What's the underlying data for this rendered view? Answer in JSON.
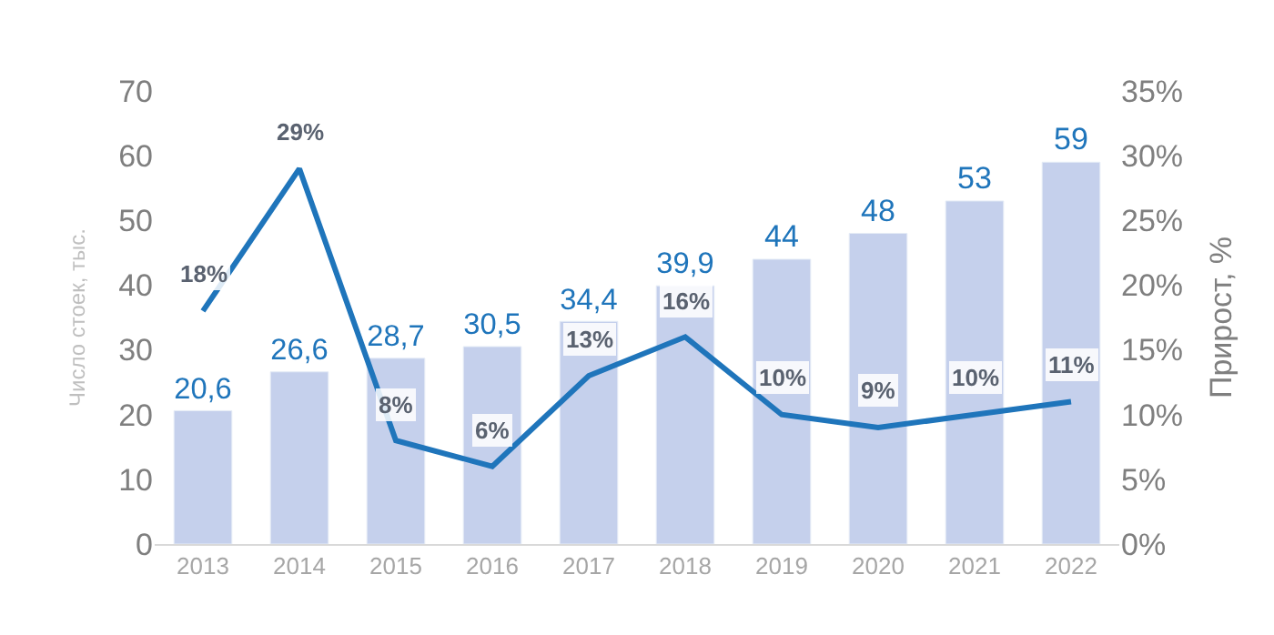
{
  "chart_data": {
    "type": "bar",
    "categories": [
      "2013",
      "2014",
      "2015",
      "2016",
      "2017",
      "2018",
      "2019",
      "2020",
      "2021",
      "2022"
    ],
    "ylabel": "Число стоек, тыс.",
    "y2label": "Прирост, %",
    "ylim": [
      0,
      70
    ],
    "yticks": [
      0,
      10,
      20,
      30,
      40,
      50,
      60,
      70
    ],
    "y2lim": [
      0,
      35
    ],
    "y2ticks": [
      {
        "value": 0,
        "label": "0%"
      },
      {
        "value": 5,
        "label": "5%"
      },
      {
        "value": 10,
        "label": "10%"
      },
      {
        "value": 15,
        "label": "15%"
      },
      {
        "value": 20,
        "label": "20%"
      },
      {
        "value": 25,
        "label": "25%"
      },
      {
        "value": 30,
        "label": "30%"
      },
      {
        "value": 35,
        "label": "35%"
      }
    ],
    "series": [
      {
        "color": "#c5d0ec",
        "values": [
          20.6,
          26.6,
          28.7,
          30.5,
          34.4,
          39.9,
          44,
          48,
          53,
          59
        ],
        "value_labels": [
          "20,6",
          "26,6",
          "28,7",
          "30,5",
          "34,4",
          "39,9",
          "44",
          "48",
          "53",
          "59"
        ]
      },
      {
        "type": "line",
        "axis": "y2",
        "color": "#1f75bb",
        "values": [
          18,
          29,
          8,
          6,
          13,
          16,
          10,
          9,
          10,
          11
        ],
        "value_labels": [
          "18%",
          "29%",
          "8%",
          "6%",
          "13%",
          "16%",
          "10%",
          "9%",
          "10%",
          "11%"
        ]
      }
    ]
  }
}
